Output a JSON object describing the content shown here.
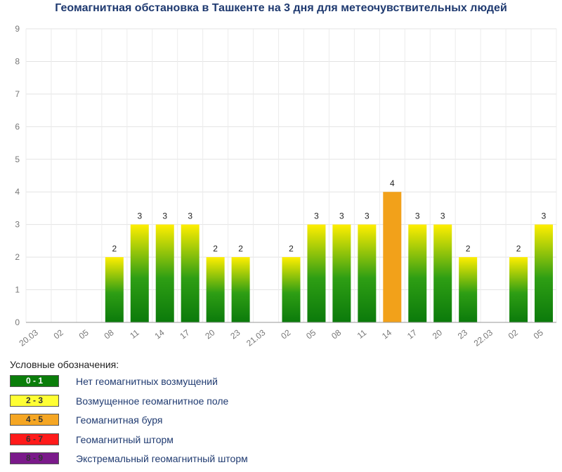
{
  "title": "Геомагнитная обстановка в Ташкенте на 3 дня для метеочувствительных людей",
  "chart_data": {
    "type": "bar",
    "title": "Геомагнитная обстановка в Ташкенте на 3 дня для метеочувствительных людей",
    "ylim": [
      0,
      9
    ],
    "yticks": [
      "0",
      "1",
      "2",
      "3",
      "4",
      "5",
      "6",
      "7",
      "8",
      "9"
    ],
    "grid": true,
    "categories": [
      "20.03",
      "02",
      "05",
      "08",
      "11",
      "14",
      "17",
      "20",
      "23",
      "21.03",
      "02",
      "05",
      "08",
      "11",
      "14",
      "17",
      "20",
      "23",
      "22.03",
      "02",
      "05"
    ],
    "values": [
      null,
      null,
      null,
      2,
      3,
      3,
      3,
      2,
      2,
      null,
      2,
      3,
      3,
      3,
      4,
      3,
      3,
      2,
      null,
      2,
      3
    ],
    "value_labels": [
      "",
      "",
      "",
      "2",
      "3",
      "3",
      "3",
      "2",
      "2",
      "",
      "2",
      "3",
      "3",
      "3",
      "4",
      "3",
      "3",
      "2",
      "",
      "2",
      "3"
    ]
  },
  "legend": {
    "title": "Условные обозначения:",
    "items": [
      {
        "range": "0 - 1",
        "label": "Нет геомагнитных возмущений",
        "color": "#0a7d0a",
        "text_color": "#ffffff"
      },
      {
        "range": "2 - 3",
        "label": "Возмущенное геомагнитное поле",
        "color": "#ffff33",
        "text_color": "#333333"
      },
      {
        "range": "4 - 5",
        "label": "Геомагнитная буря",
        "color": "#f5a623",
        "text_color": "#333333"
      },
      {
        "range": "6 - 7",
        "label": "Геомагнитный шторм",
        "color": "#ff1a1a",
        "text_color": "#333333"
      },
      {
        "range": "8 - 9",
        "label": "Экстремальный геомагнитный шторм",
        "color": "#7a1a8a",
        "text_color": "#333333"
      }
    ]
  }
}
